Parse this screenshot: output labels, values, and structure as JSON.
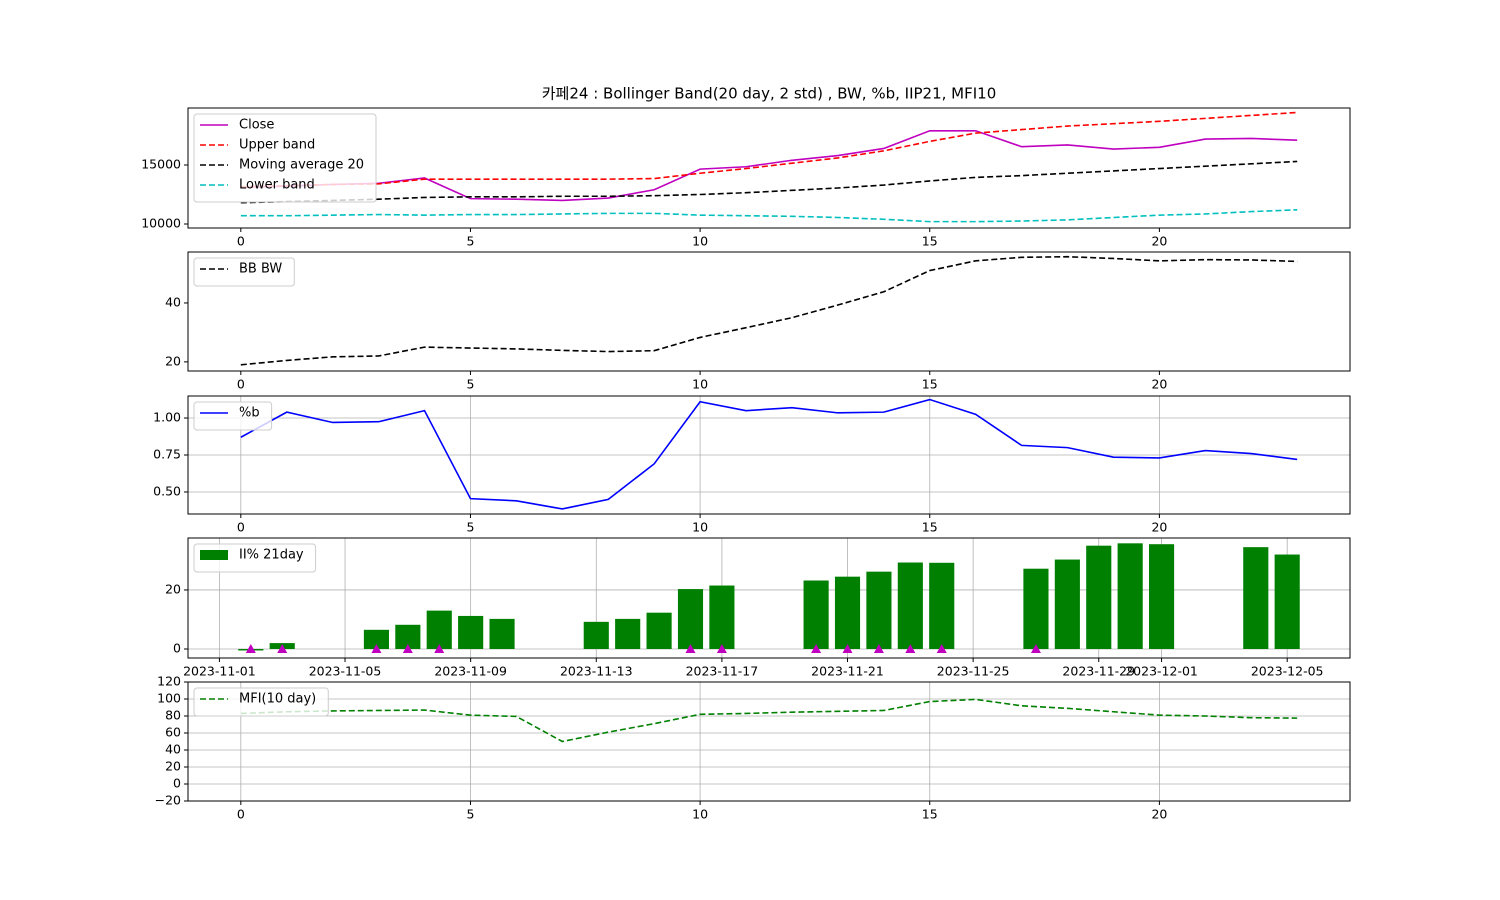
{
  "chart_data": [
    {
      "type": "line",
      "title": "카페24 : Bollinger Band(20 day, 2 std) , BW, %b, IIP21, MFI10",
      "x": [
        0,
        1,
        2,
        3,
        4,
        5,
        6,
        7,
        8,
        9,
        10,
        11,
        12,
        13,
        14,
        15,
        16,
        17,
        18,
        19,
        20,
        21,
        22,
        23
      ],
      "xlim": [
        -1.15,
        24.15
      ],
      "xticks": [
        0,
        5,
        10,
        15,
        20
      ],
      "ylim": [
        9660,
        19830
      ],
      "yticks": [
        10000,
        15000
      ],
      "grid": false,
      "legend": "upper left",
      "series": [
        {
          "name": "Close",
          "color": "#bf00bf",
          "linestyle": "solid",
          "values": [
            13100,
            13200,
            13350,
            13450,
            13900,
            12150,
            12100,
            12000,
            12200,
            12900,
            14650,
            14850,
            15400,
            15800,
            16400,
            17900,
            17900,
            16550,
            16700,
            16350,
            16500,
            17200,
            17250,
            17100
          ]
        },
        {
          "name": "Upper band",
          "color": "#ff0000",
          "linestyle": "dashed",
          "values": [
            13150,
            13250,
            13350,
            13400,
            13800,
            13800,
            13800,
            13800,
            13800,
            13850,
            14300,
            14700,
            15150,
            15600,
            16200,
            17000,
            17700,
            18000,
            18300,
            18500,
            18700,
            18950,
            19200,
            19450
          ]
        },
        {
          "name": "Moving average 20",
          "color": "#000000",
          "linestyle": "dashed",
          "values": [
            11800,
            11900,
            12000,
            12100,
            12250,
            12300,
            12300,
            12350,
            12350,
            12400,
            12500,
            12650,
            12850,
            13050,
            13300,
            13650,
            13950,
            14100,
            14300,
            14500,
            14700,
            14900,
            15100,
            15300
          ]
        },
        {
          "name": "Lower band",
          "color": "#00bfbf",
          "linestyle": "dashed",
          "values": [
            10700,
            10700,
            10750,
            10800,
            10750,
            10800,
            10800,
            10850,
            10900,
            10900,
            10750,
            10700,
            10650,
            10550,
            10400,
            10200,
            10200,
            10250,
            10350,
            10550,
            10750,
            10850,
            11050,
            11200
          ]
        }
      ]
    },
    {
      "type": "line",
      "x": [
        0,
        1,
        2,
        3,
        4,
        5,
        6,
        7,
        8,
        9,
        10,
        11,
        12,
        13,
        14,
        15,
        16,
        17,
        18,
        19,
        20,
        21,
        22,
        23
      ],
      "xlim": [
        -1.15,
        24.15
      ],
      "xticks": [
        0,
        5,
        10,
        15,
        20
      ],
      "ylim": [
        16.9,
        57.3
      ],
      "yticks": [
        20,
        40
      ],
      "grid": false,
      "legend": "upper left",
      "series": [
        {
          "name": "BB BW",
          "color": "#000000",
          "linestyle": "dashed",
          "values": [
            19,
            20.5,
            21.7,
            22,
            25,
            24.7,
            24.4,
            23.9,
            23.5,
            23.8,
            28.3,
            31.6,
            35,
            39.3,
            43.8,
            51,
            54.3,
            55.5,
            55.7,
            55.1,
            54.3,
            54.7,
            54.6,
            54.1
          ]
        }
      ]
    },
    {
      "type": "line",
      "x": [
        0,
        1,
        2,
        3,
        4,
        5,
        6,
        7,
        8,
        9,
        10,
        11,
        12,
        13,
        14,
        15,
        16,
        17,
        18,
        19,
        20,
        21,
        22,
        23
      ],
      "xlim": [
        -1.15,
        24.15
      ],
      "xticks": [
        0,
        5,
        10,
        15,
        20
      ],
      "ylim": [
        0.351,
        1.149
      ],
      "yticks": [
        {
          "value": 0.5,
          "label": "0.50"
        },
        {
          "value": 0.75,
          "label": "0.75"
        },
        {
          "value": 1,
          "label": "1.00"
        }
      ],
      "grid": true,
      "legend": "upper left",
      "series": [
        {
          "name": "%b",
          "color": "#0000ff",
          "linestyle": "solid",
          "values": [
            0.87,
            1.04,
            0.97,
            0.975,
            1.05,
            0.455,
            0.44,
            0.385,
            0.45,
            0.69,
            1.11,
            1.05,
            1.07,
            1.035,
            1.04,
            1.125,
            1.025,
            0.815,
            0.8,
            0.735,
            0.73,
            0.78,
            0.76,
            0.72
          ]
        }
      ]
    },
    {
      "type": "bar",
      "x": [
        "2023-11-02",
        "2023-11-03",
        "2023-11-06",
        "2023-11-07",
        "2023-11-08",
        "2023-11-09",
        "2023-11-10",
        "2023-11-13",
        "2023-11-14",
        "2023-11-15",
        "2023-11-16",
        "2023-11-17",
        "2023-11-20",
        "2023-11-21",
        "2023-11-22",
        "2023-11-23",
        "2023-11-24",
        "2023-11-27",
        "2023-11-28",
        "2023-11-29",
        "2023-11-30",
        "2023-12-01",
        "2023-12-04",
        "2023-12-05"
      ],
      "xlim": [
        "2023-10-31",
        "2023-12-07"
      ],
      "xticks": [
        "2023-11-01",
        "2023-11-05",
        "2023-11-09",
        "2023-11-13",
        "2023-11-17",
        "2023-11-21",
        "2023-11-25",
        "2023-11-29",
        "2023-12-01",
        "2023-12-05"
      ],
      "ylim": [
        -3.05,
        37.6
      ],
      "yticks": [
        0,
        20
      ],
      "grid": true,
      "legend": "upper left",
      "series": [
        {
          "name": "II% 21day",
          "color": "#008000",
          "values": [
            -0.5,
            2,
            6.5,
            8.2,
            13,
            11.2,
            10.2,
            9.2,
            10.2,
            12.3,
            20.3,
            21.5,
            23.2,
            24.5,
            26.2,
            29.3,
            29.2,
            27.2,
            30.3,
            35,
            35.8,
            35.5,
            34.5,
            32
          ]
        }
      ],
      "markers": {
        "color": "#bf00bf",
        "x": [
          "2023-11-02",
          "2023-11-03",
          "2023-11-06",
          "2023-11-07",
          "2023-11-08",
          "2023-11-16",
          "2023-11-17",
          "2023-11-20",
          "2023-11-21",
          "2023-11-22",
          "2023-11-23",
          "2023-11-24",
          "2023-11-27"
        ],
        "values": [
          0,
          0,
          0,
          0,
          0,
          0,
          0,
          0,
          0,
          0,
          0,
          0,
          0
        ]
      }
    },
    {
      "type": "line",
      "x": [
        0,
        1,
        2,
        3,
        4,
        5,
        6,
        7,
        8,
        9,
        10,
        11,
        12,
        13,
        14,
        15,
        16,
        17,
        18,
        19,
        20,
        21,
        22,
        23
      ],
      "xlim": [
        -1.15,
        24.15
      ],
      "xticks": [
        0,
        5,
        10,
        15,
        20
      ],
      "ylim": [
        -20,
        120
      ],
      "yticks": [
        {
          "value": -20,
          "label": "−20"
        },
        0,
        20,
        40,
        60,
        80,
        100,
        120
      ],
      "grid": true,
      "legend": "upper left",
      "series": [
        {
          "name": "MFI(10 day)",
          "color": "#008000",
          "linestyle": "dashed",
          "values": [
            83,
            85,
            86,
            86.5,
            87,
            81,
            79.5,
            50,
            61,
            71,
            82,
            83,
            84.5,
            85.5,
            86.5,
            97,
            99.5,
            92,
            89,
            85,
            81,
            80,
            78,
            77.5
          ]
        }
      ]
    }
  ]
}
